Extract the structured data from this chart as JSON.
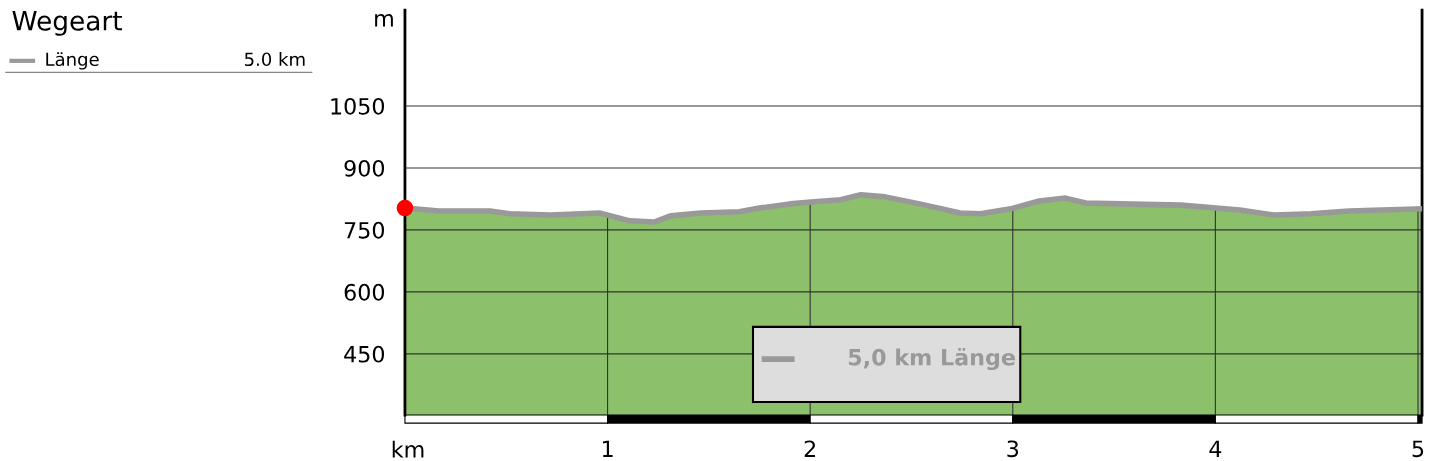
{
  "chart_data": {
    "type": "area",
    "title": "Wegeart",
    "xlabel": "km",
    "ylabel": "m",
    "x": [
      0,
      0.17,
      0.42,
      0.52,
      0.72,
      0.96,
      1.11,
      1.23,
      1.31,
      1.46,
      1.65,
      1.75,
      1.9,
      2.02,
      2.15,
      2.25,
      2.37,
      2.54,
      2.74,
      2.84,
      2.99,
      3.13,
      3.26,
      3.36,
      3.53,
      3.83,
      4.12,
      4.29,
      4.47,
      4.66,
      5.02
    ],
    "series": [
      {
        "name": "Länge",
        "color": "#999999",
        "values": [
          803,
          796,
          796,
          789,
          786,
          791,
          772,
          769,
          784,
          791,
          794,
          803,
          813,
          818,
          823,
          835,
          830,
          813,
          791,
          789,
          801,
          820,
          827,
          815,
          813,
          810,
          798,
          786,
          789,
          796,
          801
        ]
      },
      {
        "type": "scatter",
        "color": "#ff0000",
        "x": [
          0
        ],
        "values": [
          803
        ]
      }
    ],
    "annotations": [
      "5.0 km",
      "5,0 km Länge"
    ],
    "xlim": [
      0,
      5.02
    ],
    "xticks": [
      1,
      2,
      3,
      4,
      5
    ],
    "ylim": [
      302,
      1282
    ],
    "yticks": [
      450,
      600,
      750,
      900,
      1050
    ],
    "grid": true,
    "legend": "top left"
  }
}
